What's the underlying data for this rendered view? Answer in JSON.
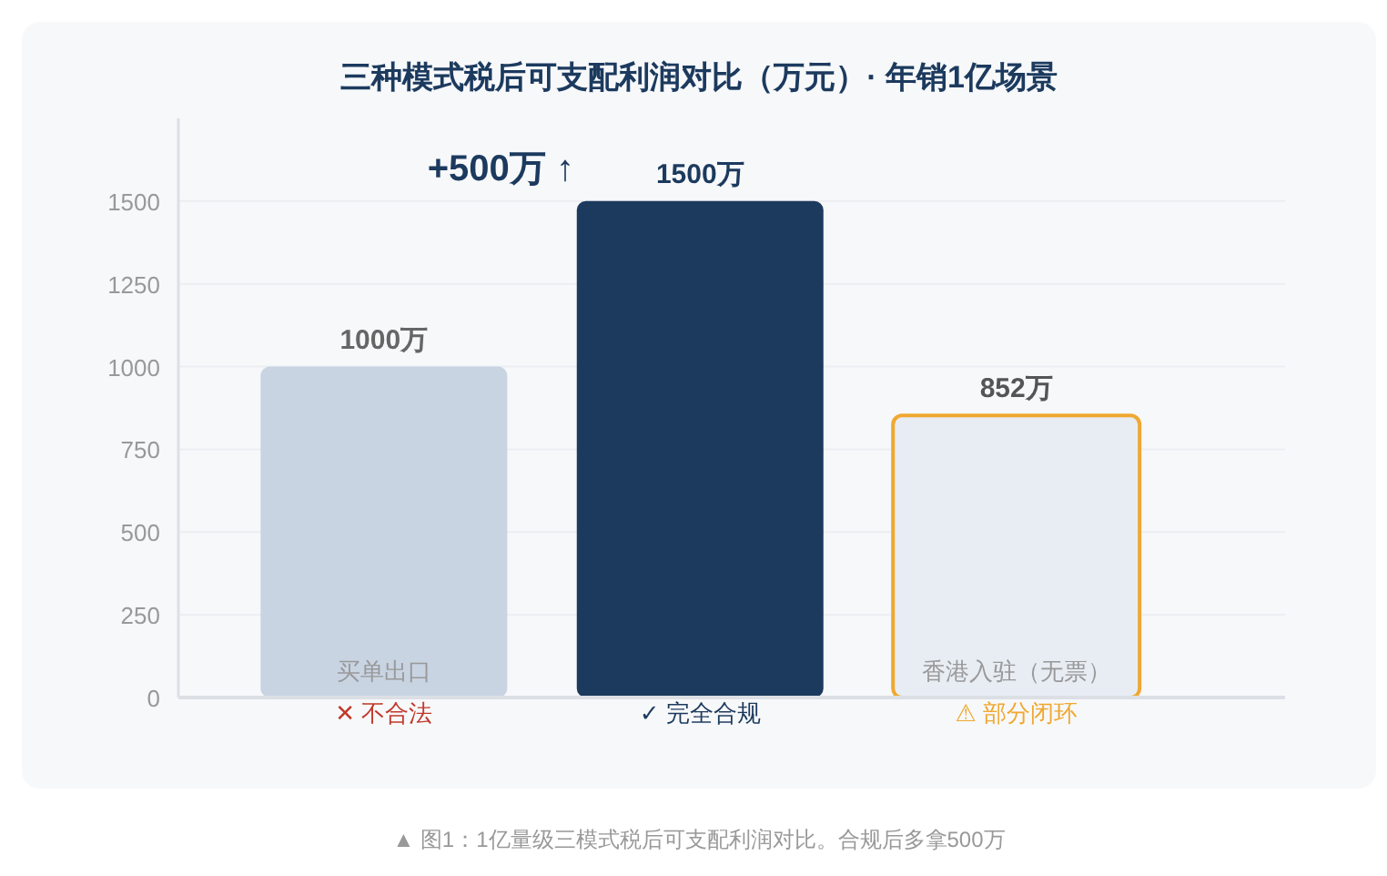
{
  "chart_data": {
    "type": "bar",
    "title": "三种模式税后可支配利润对比（万元）· 年销1亿场景",
    "categories": [
      "买单出口\n✕ 不合法",
      "\n✓ 完全合规",
      "香港入驻（无票）\n⚠ 部分闭环"
    ],
    "values": [
      1000,
      1500,
      852
    ],
    "colors": [
      "#c9d4e3",
      "#1c3a5e",
      "#e8edf4"
    ],
    "value_labels": [
      "1000万",
      "1500万",
      "852万"
    ],
    "ylim": [
      0,
      1750
    ],
    "yticks": [
      0,
      250,
      500,
      750,
      1000,
      1250,
      1500
    ],
    "grid": "y",
    "annotations": [
      "+500万 ↑",
      "▲ 图1：1亿量级三模式税后可支配利润对比。合规后多拿500万"
    ]
  }
}
